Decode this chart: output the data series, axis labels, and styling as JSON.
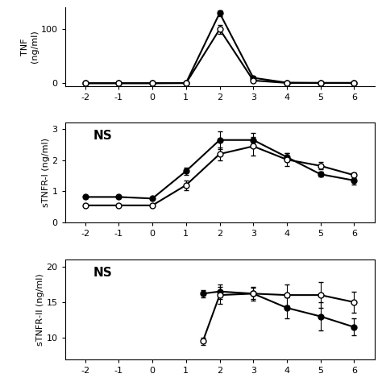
{
  "x": [
    -2,
    -1,
    0,
    1,
    2,
    3,
    4,
    5,
    6
  ],
  "panel1": {
    "ylabel": "TNF\n(ng/ml)",
    "ylim": [
      -5,
      140
    ],
    "yticks": [
      0,
      100
    ],
    "yticklabels": [
      "0",
      "100"
    ],
    "filled_y": [
      0,
      0,
      0,
      0.5,
      130,
      10,
      1,
      0.5,
      0.5
    ],
    "filled_err": [
      0,
      0,
      0,
      0.3,
      5,
      2,
      0.5,
      0.2,
      0.2
    ],
    "open_y": [
      0,
      0,
      0,
      0,
      100,
      5,
      0.5,
      0.5,
      0.5
    ],
    "open_err": [
      0,
      0,
      0,
      0,
      8,
      1.5,
      0.3,
      0.2,
      0.2
    ]
  },
  "panel2": {
    "ylabel": "sTNFR-I (ng/ml)",
    "ylim": [
      0,
      3.2
    ],
    "yticks": [
      0,
      1,
      2,
      3
    ],
    "yticklabels": [
      "0",
      "1",
      "2",
      "3"
    ],
    "annotation": "NS",
    "filled_y": [
      0.82,
      0.82,
      0.77,
      1.65,
      2.65,
      2.65,
      2.1,
      1.55,
      1.35
    ],
    "filled_err": [
      0.04,
      0.04,
      0.04,
      0.12,
      0.28,
      0.22,
      0.12,
      0.08,
      0.12
    ],
    "open_y": [
      0.55,
      0.55,
      0.55,
      1.2,
      2.2,
      2.45,
      2.02,
      1.82,
      1.52
    ],
    "open_err": [
      0.04,
      0.04,
      0.04,
      0.15,
      0.2,
      0.3,
      0.2,
      0.12,
      0.1
    ]
  },
  "panel3": {
    "ylabel": "sTNFR‑II (ng/ml)",
    "ylim": [
      7,
      21
    ],
    "yticks": [
      10,
      15,
      20
    ],
    "yticklabels": [
      "10",
      "15",
      "20"
    ],
    "annotation": "NS",
    "x_vals": [
      1.5,
      2,
      3,
      4,
      5,
      6
    ],
    "filled_y": [
      16.2,
      16.5,
      16.2,
      14.2,
      13.0,
      11.5
    ],
    "filled_err": [
      0.5,
      1.0,
      0.8,
      1.5,
      2.0,
      1.2
    ],
    "open_y": [
      9.5,
      16.0,
      16.2,
      16.0,
      16.0,
      15.0
    ],
    "open_err": [
      0.5,
      1.2,
      1.0,
      1.5,
      1.8,
      1.5
    ]
  },
  "markersize": 5,
  "linewidth": 1.5,
  "capsize": 2,
  "elinewidth": 0.8,
  "background_color": "white"
}
